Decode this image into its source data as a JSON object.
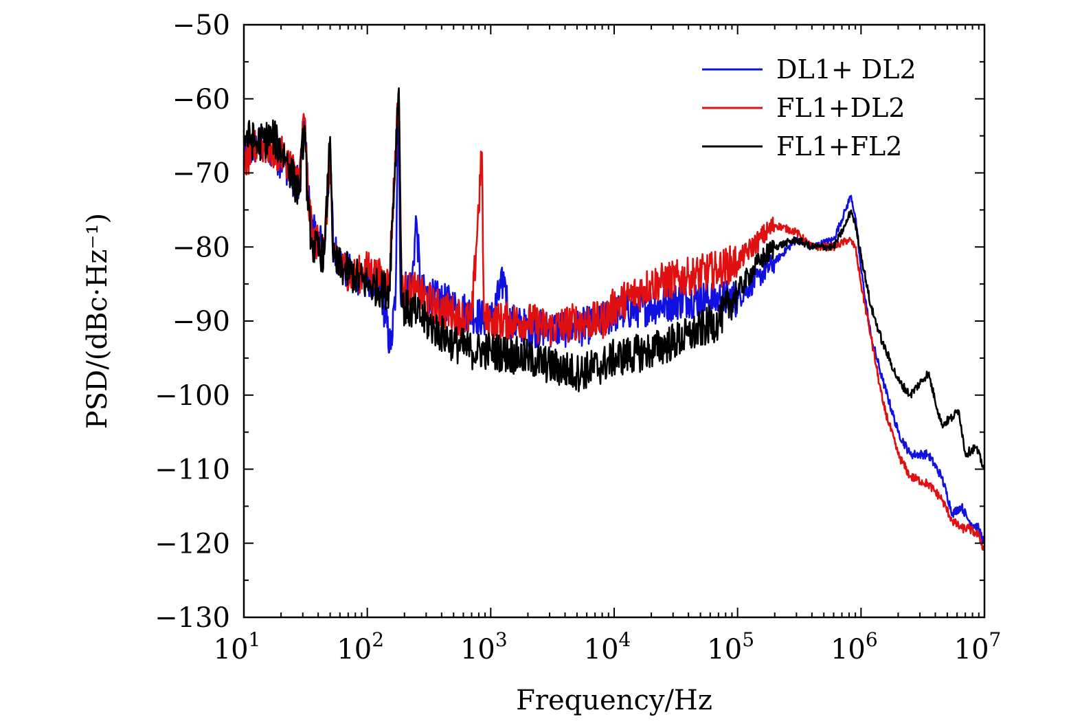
{
  "chart_data": {
    "type": "line",
    "xscale": "log",
    "xlim": [
      10,
      10000000
    ],
    "ylim": [
      -130,
      -50
    ],
    "xlabel": "Frequency/Hz",
    "ylabel": "PSD/(dBc·Hz⁻¹)",
    "grid": false,
    "legend_position": "top-right",
    "x_ticks": [
      {
        "value": 10,
        "base": "10",
        "exp": "1"
      },
      {
        "value": 100,
        "base": "10",
        "exp": "2"
      },
      {
        "value": 1000,
        "base": "10",
        "exp": "3"
      },
      {
        "value": 10000,
        "base": "10",
        "exp": "4"
      },
      {
        "value": 100000,
        "base": "10",
        "exp": "5"
      },
      {
        "value": 1000000,
        "base": "10",
        "exp": "6"
      },
      {
        "value": 10000000,
        "base": "10",
        "exp": "7"
      }
    ],
    "y_ticks": [
      {
        "value": -50,
        "label": "−50"
      },
      {
        "value": -60,
        "label": "−60"
      },
      {
        "value": -70,
        "label": "−70"
      },
      {
        "value": -80,
        "label": "−80"
      },
      {
        "value": -90,
        "label": "−90"
      },
      {
        "value": -100,
        "label": "−100"
      },
      {
        "value": -110,
        "label": "−110"
      },
      {
        "value": -120,
        "label": "−120"
      },
      {
        "value": -130,
        "label": "−130"
      }
    ],
    "series": [
      {
        "name": "DL1+ DL2",
        "color": "#1010e0",
        "points": [
          [
            10,
            -68
          ],
          [
            13,
            -66
          ],
          [
            17,
            -67
          ],
          [
            22,
            -69
          ],
          [
            28,
            -72
          ],
          [
            31,
            -62.5
          ],
          [
            33,
            -72
          ],
          [
            36,
            -78
          ],
          [
            45,
            -80
          ],
          [
            50,
            -67
          ],
          [
            53,
            -80
          ],
          [
            65,
            -83
          ],
          [
            80,
            -84
          ],
          [
            100,
            -84
          ],
          [
            130,
            -86
          ],
          [
            155,
            -94
          ],
          [
            170,
            -86
          ],
          [
            180,
            -58
          ],
          [
            185,
            -86
          ],
          [
            230,
            -85
          ],
          [
            250,
            -76
          ],
          [
            270,
            -86
          ],
          [
            350,
            -87
          ],
          [
            500,
            -88
          ],
          [
            700,
            -89
          ],
          [
            1000,
            -90
          ],
          [
            1300,
            -84
          ],
          [
            1400,
            -90
          ],
          [
            2000,
            -91
          ],
          [
            3000,
            -91
          ],
          [
            5000,
            -91
          ],
          [
            8000,
            -90
          ],
          [
            10000,
            -89
          ],
          [
            20000,
            -88
          ],
          [
            40000,
            -87
          ],
          [
            70000,
            -87
          ],
          [
            100000,
            -87
          ],
          [
            150000,
            -84
          ],
          [
            200000,
            -82
          ],
          [
            300000,
            -79
          ],
          [
            400000,
            -80
          ],
          [
            600000,
            -79
          ],
          [
            750000,
            -75
          ],
          [
            830000,
            -73
          ],
          [
            900000,
            -76
          ],
          [
            1000000,
            -83
          ],
          [
            1200000,
            -92
          ],
          [
            1500000,
            -98
          ],
          [
            2000000,
            -105
          ],
          [
            2500000,
            -108
          ],
          [
            3500000,
            -108
          ],
          [
            4500000,
            -111
          ],
          [
            5500000,
            -116
          ],
          [
            6500000,
            -115
          ],
          [
            7500000,
            -117
          ],
          [
            9000000,
            -118
          ],
          [
            10000000,
            -120
          ]
        ]
      },
      {
        "name": "FL1+DL2",
        "color": "#e01010",
        "points": [
          [
            10,
            -69
          ],
          [
            13,
            -66
          ],
          [
            17,
            -67
          ],
          [
            22,
            -68
          ],
          [
            28,
            -71
          ],
          [
            31,
            -62
          ],
          [
            33,
            -73
          ],
          [
            36,
            -79
          ],
          [
            45,
            -80
          ],
          [
            50,
            -68
          ],
          [
            53,
            -82
          ],
          [
            65,
            -83
          ],
          [
            80,
            -84
          ],
          [
            100,
            -83
          ],
          [
            150,
            -85
          ],
          [
            180,
            -58.5
          ],
          [
            190,
            -86
          ],
          [
            250,
            -86
          ],
          [
            350,
            -88
          ],
          [
            500,
            -89
          ],
          [
            700,
            -90
          ],
          [
            850,
            -67
          ],
          [
            880,
            -90
          ],
          [
            1000,
            -90
          ],
          [
            2000,
            -90
          ],
          [
            3000,
            -91
          ],
          [
            5000,
            -90
          ],
          [
            8000,
            -90
          ],
          [
            10000,
            -88
          ],
          [
            20000,
            -85
          ],
          [
            40000,
            -84
          ],
          [
            70000,
            -83
          ],
          [
            100000,
            -82
          ],
          [
            150000,
            -79
          ],
          [
            200000,
            -77
          ],
          [
            300000,
            -78
          ],
          [
            400000,
            -80
          ],
          [
            600000,
            -80
          ],
          [
            800000,
            -79
          ],
          [
            900000,
            -80
          ],
          [
            1000000,
            -85
          ],
          [
            1200000,
            -92
          ],
          [
            1500000,
            -101
          ],
          [
            2000000,
            -108
          ],
          [
            2500000,
            -111
          ],
          [
            3500000,
            -112
          ],
          [
            4500000,
            -114
          ],
          [
            5500000,
            -117
          ],
          [
            6500000,
            -118
          ],
          [
            7500000,
            -118
          ],
          [
            9000000,
            -119
          ],
          [
            10000000,
            -121
          ]
        ]
      },
      {
        "name": "FL1+FL2",
        "color": "#000000",
        "points": [
          [
            10,
            -65
          ],
          [
            13,
            -66
          ],
          [
            17,
            -65
          ],
          [
            22,
            -68
          ],
          [
            28,
            -73
          ],
          [
            31,
            -63
          ],
          [
            33,
            -75
          ],
          [
            36,
            -80
          ],
          [
            45,
            -81
          ],
          [
            50,
            -65
          ],
          [
            53,
            -82
          ],
          [
            65,
            -83
          ],
          [
            80,
            -84
          ],
          [
            100,
            -85
          ],
          [
            150,
            -86
          ],
          [
            180,
            -58
          ],
          [
            190,
            -88
          ],
          [
            250,
            -89
          ],
          [
            350,
            -91
          ],
          [
            500,
            -93
          ],
          [
            700,
            -94
          ],
          [
            1000,
            -94
          ],
          [
            2000,
            -95
          ],
          [
            3000,
            -96
          ],
          [
            5000,
            -97
          ],
          [
            8000,
            -96
          ],
          [
            10000,
            -95
          ],
          [
            20000,
            -94
          ],
          [
            40000,
            -92
          ],
          [
            70000,
            -90
          ],
          [
            100000,
            -86
          ],
          [
            150000,
            -82
          ],
          [
            200000,
            -80
          ],
          [
            300000,
            -79
          ],
          [
            400000,
            -80
          ],
          [
            600000,
            -80
          ],
          [
            750000,
            -77
          ],
          [
            830000,
            -75
          ],
          [
            900000,
            -77
          ],
          [
            1000000,
            -81
          ],
          [
            1200000,
            -88
          ],
          [
            1500000,
            -93
          ],
          [
            2000000,
            -98
          ],
          [
            2500000,
            -100
          ],
          [
            3500000,
            -97
          ],
          [
            4500000,
            -104
          ],
          [
            5500000,
            -103
          ],
          [
            6200000,
            -102
          ],
          [
            7000000,
            -108
          ],
          [
            8500000,
            -107
          ],
          [
            10000000,
            -110
          ]
        ]
      }
    ]
  }
}
